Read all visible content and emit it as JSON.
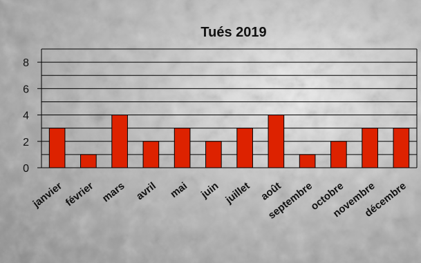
{
  "chart_data": {
    "type": "bar",
    "title": "Tués 2019",
    "categories": [
      "janvier",
      "février",
      "mars",
      "avril",
      "mai",
      "juin",
      "juillet",
      "août",
      "septembre",
      "octobre",
      "novembre",
      "décembre"
    ],
    "values": [
      3,
      1,
      4,
      2,
      3,
      2,
      3,
      4,
      1,
      2,
      3,
      3
    ],
    "ylim": [
      0,
      9
    ],
    "yticks": [
      0,
      2,
      4,
      6,
      8
    ],
    "grid": true,
    "legend": "none",
    "bar_color": "#dd2200",
    "background": "grey stone texture"
  }
}
